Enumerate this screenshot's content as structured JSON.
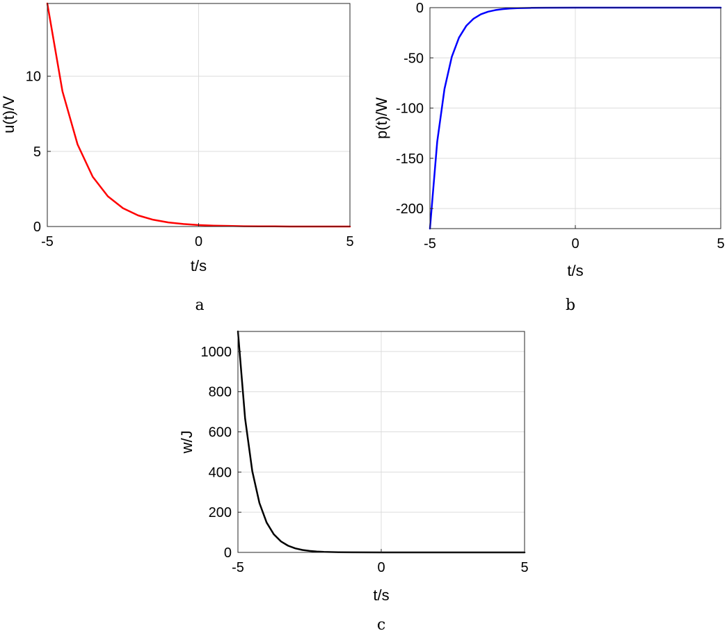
{
  "chart_data": [
    {
      "id": "a",
      "type": "line",
      "caption": "a",
      "xlabel": "t/s",
      "ylabel": "u(t)/V",
      "xlim": [
        -5,
        5
      ],
      "ylim": [
        0,
        14.84
      ],
      "xticks": [
        -5,
        0,
        5
      ],
      "yticks": [
        0,
        5,
        10
      ],
      "grid": true,
      "series": [
        {
          "color": "#ff0000",
          "x": [
            -5,
            -4.5,
            -4,
            -3.5,
            -3,
            -2.5,
            -2,
            -1.5,
            -1,
            -0.5,
            0,
            0.5,
            1,
            1.5,
            2,
            2.5,
            3,
            3.5,
            4,
            4.5,
            5
          ],
          "y": [
            14.84,
            9.0,
            5.46,
            3.31,
            2.01,
            1.22,
            0.74,
            0.45,
            0.27,
            0.17,
            0.1,
            0.06,
            0.04,
            0.02,
            0.01,
            0.01,
            0.0,
            0.0,
            0.0,
            0.0,
            0.0
          ]
        }
      ]
    },
    {
      "id": "b",
      "type": "line",
      "caption": "b",
      "xlabel": "t/s",
      "ylabel": "p(t)/W",
      "xlim": [
        -5,
        5
      ],
      "ylim": [
        -220,
        0
      ],
      "xticks": [
        -5,
        0,
        5
      ],
      "yticks": [
        0,
        -50,
        -100,
        -150,
        -200
      ],
      "grid": true,
      "series": [
        {
          "color": "#0000ff",
          "x": [
            -5,
            -4.75,
            -4.5,
            -4.25,
            -4,
            -3.75,
            -3.5,
            -3.25,
            -3,
            -2.75,
            -2.5,
            -2.25,
            -2,
            -1.5,
            -1,
            0,
            1,
            2,
            3,
            4,
            5
          ],
          "y": [
            -220,
            -133.5,
            -81.0,
            -49.1,
            -29.8,
            -18.1,
            -11.0,
            -6.65,
            -4.03,
            -2.45,
            -1.48,
            -0.9,
            -0.55,
            -0.2,
            -0.07,
            -0.01,
            0,
            0,
            0,
            0,
            0
          ]
        }
      ]
    },
    {
      "id": "c",
      "type": "line",
      "caption": "c",
      "xlabel": "t/s",
      "ylabel": "w/J",
      "xlim": [
        -5,
        5
      ],
      "ylim": [
        0,
        1100
      ],
      "xticks": [
        -5,
        0,
        5
      ],
      "yticks": [
        0,
        200,
        400,
        600,
        800,
        1000
      ],
      "grid": true,
      "series": [
        {
          "color": "#000000",
          "x": [
            -5,
            -4.75,
            -4.5,
            -4.25,
            -4,
            -3.75,
            -3.5,
            -3.25,
            -3,
            -2.75,
            -2.5,
            -2.25,
            -2,
            -1.5,
            -1,
            0,
            1,
            2,
            3,
            4,
            5
          ],
          "y": [
            1100,
            667,
            405,
            246,
            149,
            90.4,
            54.8,
            33.3,
            20.2,
            12.2,
            7.4,
            4.5,
            2.7,
            1.0,
            0.4,
            0.05,
            0,
            0,
            0,
            0,
            0
          ]
        }
      ]
    }
  ]
}
